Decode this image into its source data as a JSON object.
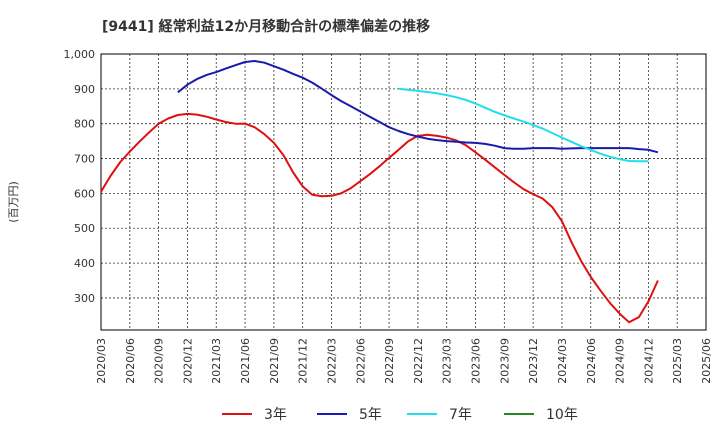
{
  "chart_data": {
    "type": "line",
    "title": "[9441]  経常利益12か月移動合計の標準偏差の推移",
    "ylabel": "(百万円)",
    "xlabel": "",
    "ylim": [
      208,
      1000
    ],
    "yticks": [
      1000,
      900,
      800,
      700,
      600,
      500,
      400,
      300
    ],
    "ytick_labels": [
      "1,000",
      "900",
      "800",
      "700",
      "600",
      "500",
      "400",
      "300"
    ],
    "x_categories": [
      "2020/03",
      "2020/06",
      "2020/09",
      "2020/12",
      "2021/03",
      "2021/06",
      "2021/09",
      "2021/12",
      "2022/03",
      "2022/06",
      "2022/09",
      "2022/12",
      "2023/03",
      "2023/06",
      "2023/09",
      "2023/12",
      "2024/03",
      "2024/06",
      "2024/09",
      "2024/12",
      "2025/03",
      "2025/06"
    ],
    "grid": true,
    "legend_position": "bottom",
    "series": [
      {
        "name": "3年",
        "color": "#dd1111",
        "points": [
          [
            0,
            605
          ],
          [
            0.33,
            650
          ],
          [
            0.67,
            690
          ],
          [
            1,
            720
          ],
          [
            1.33,
            748
          ],
          [
            1.67,
            775
          ],
          [
            2,
            800
          ],
          [
            2.33,
            815
          ],
          [
            2.67,
            825
          ],
          [
            3,
            828
          ],
          [
            3.33,
            826
          ],
          [
            3.67,
            820
          ],
          [
            4,
            812
          ],
          [
            4.33,
            805
          ],
          [
            4.67,
            800
          ],
          [
            5,
            800
          ],
          [
            5.33,
            790
          ],
          [
            5.67,
            770
          ],
          [
            6,
            745
          ],
          [
            6.33,
            710
          ],
          [
            6.67,
            660
          ],
          [
            7,
            620
          ],
          [
            7.33,
            596
          ],
          [
            7.67,
            592
          ],
          [
            8,
            593
          ],
          [
            8.33,
            600
          ],
          [
            8.67,
            615
          ],
          [
            9,
            635
          ],
          [
            9.33,
            655
          ],
          [
            9.67,
            678
          ],
          [
            10,
            702
          ],
          [
            10.33,
            725
          ],
          [
            10.67,
            750
          ],
          [
            11,
            765
          ],
          [
            11.33,
            768
          ],
          [
            11.67,
            765
          ],
          [
            12,
            760
          ],
          [
            12.33,
            752
          ],
          [
            12.67,
            738
          ],
          [
            13,
            718
          ],
          [
            13.33,
            697
          ],
          [
            13.67,
            675
          ],
          [
            14,
            653
          ],
          [
            14.33,
            632
          ],
          [
            14.67,
            612
          ],
          [
            15,
            598
          ],
          [
            15.33,
            585
          ],
          [
            15.67,
            560
          ],
          [
            16,
            520
          ],
          [
            16.33,
            460
          ],
          [
            16.67,
            405
          ],
          [
            17,
            360
          ],
          [
            17.33,
            322
          ],
          [
            17.67,
            285
          ],
          [
            18,
            255
          ],
          [
            18.33,
            230
          ],
          [
            18.67,
            245
          ],
          [
            19,
            290
          ],
          [
            19.33,
            350
          ]
        ]
      },
      {
        "name": "5年",
        "color": "#1a1aaa",
        "points": [
          [
            2.67,
            890
          ],
          [
            3,
            912
          ],
          [
            3.33,
            928
          ],
          [
            3.67,
            940
          ],
          [
            4,
            948
          ],
          [
            4.33,
            958
          ],
          [
            4.67,
            968
          ],
          [
            5,
            977
          ],
          [
            5.33,
            980
          ],
          [
            5.67,
            975
          ],
          [
            6,
            965
          ],
          [
            6.33,
            955
          ],
          [
            6.67,
            943
          ],
          [
            7,
            932
          ],
          [
            7.33,
            918
          ],
          [
            7.67,
            900
          ],
          [
            8,
            882
          ],
          [
            8.33,
            865
          ],
          [
            8.67,
            850
          ],
          [
            9,
            835
          ],
          [
            9.33,
            820
          ],
          [
            9.67,
            805
          ],
          [
            10,
            790
          ],
          [
            10.33,
            779
          ],
          [
            10.67,
            770
          ],
          [
            11,
            763
          ],
          [
            11.33,
            757
          ],
          [
            11.67,
            753
          ],
          [
            12,
            750
          ],
          [
            12.33,
            748
          ],
          [
            12.67,
            746
          ],
          [
            13,
            745
          ],
          [
            13.33,
            742
          ],
          [
            13.67,
            737
          ],
          [
            14,
            730
          ],
          [
            14.33,
            728
          ],
          [
            14.67,
            728
          ],
          [
            15,
            730
          ],
          [
            15.33,
            730
          ],
          [
            15.67,
            730
          ],
          [
            16,
            728
          ],
          [
            16.33,
            729
          ],
          [
            16.67,
            730
          ],
          [
            17,
            730
          ],
          [
            17.33,
            730
          ],
          [
            17.67,
            730
          ],
          [
            18,
            730
          ],
          [
            18.33,
            730
          ],
          [
            18.67,
            727
          ],
          [
            19,
            725
          ],
          [
            19.33,
            718
          ]
        ]
      },
      {
        "name": "7年",
        "color": "#22ddee",
        "points": [
          [
            10.33,
            900
          ],
          [
            10.67,
            897
          ],
          [
            11,
            894
          ],
          [
            11.33,
            891
          ],
          [
            11.67,
            887
          ],
          [
            12,
            882
          ],
          [
            12.33,
            876
          ],
          [
            12.67,
            868
          ],
          [
            13,
            858
          ],
          [
            13.33,
            846
          ],
          [
            13.67,
            834
          ],
          [
            14,
            824
          ],
          [
            14.33,
            815
          ],
          [
            14.67,
            806
          ],
          [
            15,
            796
          ],
          [
            15.33,
            786
          ],
          [
            15.67,
            773
          ],
          [
            16,
            760
          ],
          [
            16.33,
            748
          ],
          [
            16.67,
            735
          ],
          [
            17,
            725
          ],
          [
            17.33,
            714
          ],
          [
            17.67,
            705
          ],
          [
            18,
            698
          ],
          [
            18.33,
            693
          ],
          [
            18.67,
            692
          ],
          [
            19,
            692
          ]
        ]
      },
      {
        "name": "10年",
        "color": "#228822",
        "points": []
      }
    ]
  }
}
